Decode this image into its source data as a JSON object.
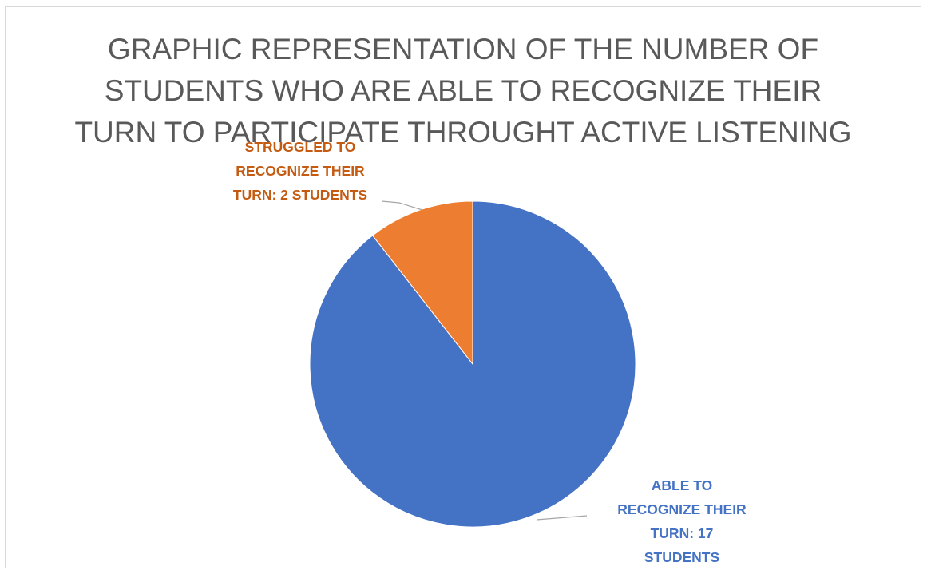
{
  "chart_data": {
    "type": "pie",
    "title_lines": [
      "GRAPHIC REPRESENTATION OF THE NUMBER OF",
      "STUDENTS WHO ARE ABLE TO RECOGNIZE THEIR",
      "TURN TO PARTICIPATE THROUGHT ACTIVE LISTENING"
    ],
    "categories": [
      "ABLE TO RECOGNIZE THEIR TURN",
      "STRUGGLED TO RECOGNIZE THEIR TURN"
    ],
    "values": [
      17,
      2
    ],
    "colors": [
      "#4472c4",
      "#ed7d31"
    ],
    "data_labels": [
      {
        "lines": [
          "ABLE TO",
          "RECOGNIZE THEIR",
          "TURN: 17",
          "STUDENTS"
        ],
        "color": "#4472c4"
      },
      {
        "lines": [
          "STRUGGLED TO",
          "RECOGNIZE THEIR",
          "TURN: 2 STUDENTS"
        ],
        "color": "#c55a11"
      }
    ],
    "legend": "none"
  }
}
